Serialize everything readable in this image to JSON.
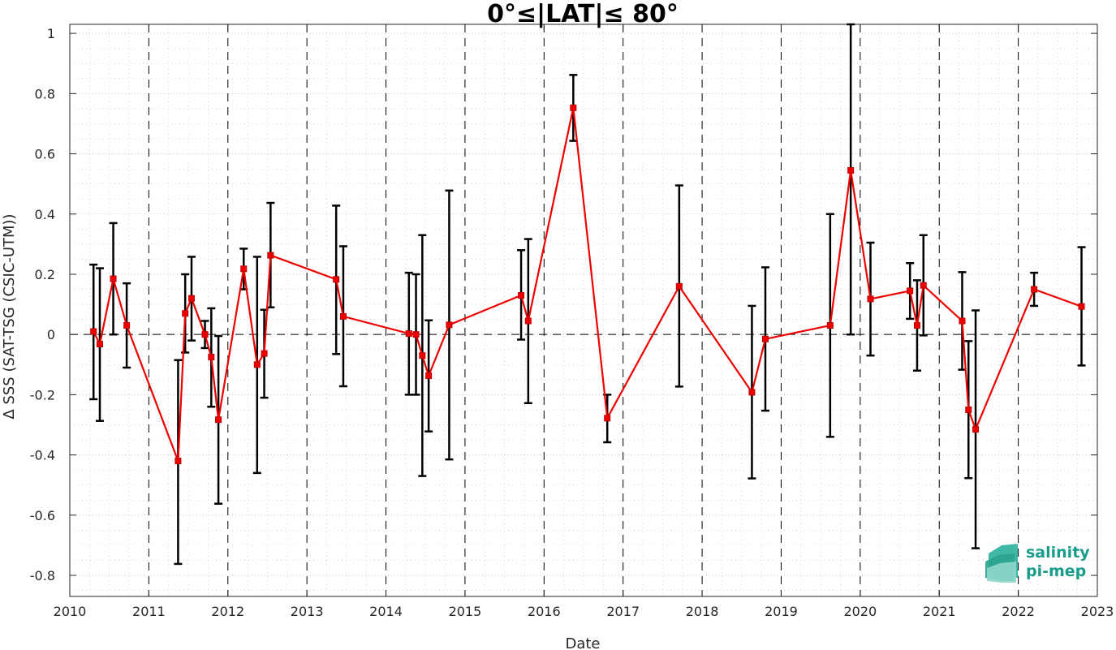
{
  "chart_data": {
    "type": "line",
    "title": "0°≤|LAT|≤ 80°",
    "xlabel": "Date",
    "ylabel": "Δ SSS (SAT-TSG (CSIC-UTM))",
    "xlim": [
      2010,
      2023
    ],
    "ylim": [
      -0.87,
      1.03
    ],
    "xticks": [
      2010,
      2011,
      2012,
      2013,
      2014,
      2015,
      2016,
      2017,
      2018,
      2019,
      2020,
      2021,
      2022,
      2023
    ],
    "yticks": [
      -0.8,
      -0.6,
      -0.4,
      -0.2,
      0,
      0.2,
      0.4,
      0.6,
      0.8,
      1
    ],
    "ytick_labels": [
      "-0.8",
      "-0.6",
      "-0.4",
      "-0.2",
      "0",
      "0.2",
      "0.4",
      "0.6",
      "0.8",
      "1"
    ],
    "grid": true,
    "year_dividers": true,
    "zero_line": true,
    "colors": {
      "line": "#ee0000",
      "errorbar": "#000000",
      "marker": "#ee0000"
    },
    "series": [
      {
        "points": [
          {
            "x": 2010.3,
            "y": 0.01,
            "lo": -0.215,
            "hi": 0.232
          },
          {
            "x": 2010.38,
            "y": -0.032,
            "lo": -0.287,
            "hi": 0.22
          },
          {
            "x": 2010.55,
            "y": 0.185,
            "lo": 0.0,
            "hi": 0.37
          },
          {
            "x": 2010.72,
            "y": 0.03,
            "lo": -0.11,
            "hi": 0.17
          },
          {
            "x": 2011.37,
            "y": -0.42,
            "lo": -0.762,
            "hi": -0.085
          },
          {
            "x": 2011.46,
            "y": 0.07,
            "lo": -0.06,
            "hi": 0.2
          },
          {
            "x": 2011.54,
            "y": 0.12,
            "lo": -0.02,
            "hi": 0.258
          },
          {
            "x": 2011.71,
            "y": 0.0,
            "lo": -0.045,
            "hi": 0.045
          },
          {
            "x": 2011.79,
            "y": -0.075,
            "lo": -0.24,
            "hi": 0.087
          },
          {
            "x": 2011.88,
            "y": -0.283,
            "lo": -0.562,
            "hi": -0.005
          },
          {
            "x": 2012.2,
            "y": 0.218,
            "lo": 0.15,
            "hi": 0.285
          },
          {
            "x": 2012.37,
            "y": -0.1,
            "lo": -0.46,
            "hi": 0.258
          },
          {
            "x": 2012.46,
            "y": -0.063,
            "lo": -0.21,
            "hi": 0.082
          },
          {
            "x": 2012.54,
            "y": 0.263,
            "lo": 0.09,
            "hi": 0.437
          },
          {
            "x": 2013.37,
            "y": 0.183,
            "lo": -0.065,
            "hi": 0.428
          },
          {
            "x": 2013.46,
            "y": 0.06,
            "lo": -0.172,
            "hi": 0.293
          },
          {
            "x": 2014.29,
            "y": 0.003,
            "lo": -0.2,
            "hi": 0.205
          },
          {
            "x": 2014.38,
            "y": 0.0,
            "lo": -0.2,
            "hi": 0.2
          },
          {
            "x": 2014.46,
            "y": -0.07,
            "lo": -0.47,
            "hi": 0.33
          },
          {
            "x": 2014.54,
            "y": -0.137,
            "lo": -0.322,
            "hi": 0.047
          },
          {
            "x": 2014.8,
            "y": 0.032,
            "lo": -0.415,
            "hi": 0.478
          },
          {
            "x": 2015.71,
            "y": 0.13,
            "lo": -0.017,
            "hi": 0.28
          },
          {
            "x": 2015.8,
            "y": 0.045,
            "lo": -0.228,
            "hi": 0.317
          },
          {
            "x": 2016.37,
            "y": 0.753,
            "lo": 0.643,
            "hi": 0.862
          },
          {
            "x": 2016.8,
            "y": -0.278,
            "lo": -0.358,
            "hi": -0.2
          },
          {
            "x": 2017.71,
            "y": 0.16,
            "lo": -0.173,
            "hi": 0.495
          },
          {
            "x": 2018.63,
            "y": -0.192,
            "lo": -0.478,
            "hi": 0.095
          },
          {
            "x": 2018.8,
            "y": -0.015,
            "lo": -0.253,
            "hi": 0.223
          },
          {
            "x": 2019.62,
            "y": 0.03,
            "lo": -0.34,
            "hi": 0.4
          },
          {
            "x": 2019.88,
            "y": 0.545,
            "lo": 0.0,
            "hi": 1.03
          },
          {
            "x": 2020.13,
            "y": 0.118,
            "lo": -0.07,
            "hi": 0.305
          },
          {
            "x": 2020.63,
            "y": 0.145,
            "lo": 0.052,
            "hi": 0.237
          },
          {
            "x": 2020.72,
            "y": 0.03,
            "lo": -0.12,
            "hi": 0.18
          },
          {
            "x": 2020.8,
            "y": 0.163,
            "lo": -0.003,
            "hi": 0.33
          },
          {
            "x": 2021.29,
            "y": 0.045,
            "lo": -0.117,
            "hi": 0.207
          },
          {
            "x": 2021.37,
            "y": -0.25,
            "lo": -0.477,
            "hi": -0.022
          },
          {
            "x": 2021.46,
            "y": -0.315,
            "lo": -0.71,
            "hi": 0.08
          },
          {
            "x": 2022.2,
            "y": 0.15,
            "lo": 0.095,
            "hi": 0.205
          },
          {
            "x": 2022.8,
            "y": 0.093,
            "lo": -0.103,
            "hi": 0.29
          }
        ]
      }
    ]
  },
  "logo": {
    "line1": "salinity",
    "line2": "pi-mep",
    "color": "#1a9c8c"
  }
}
